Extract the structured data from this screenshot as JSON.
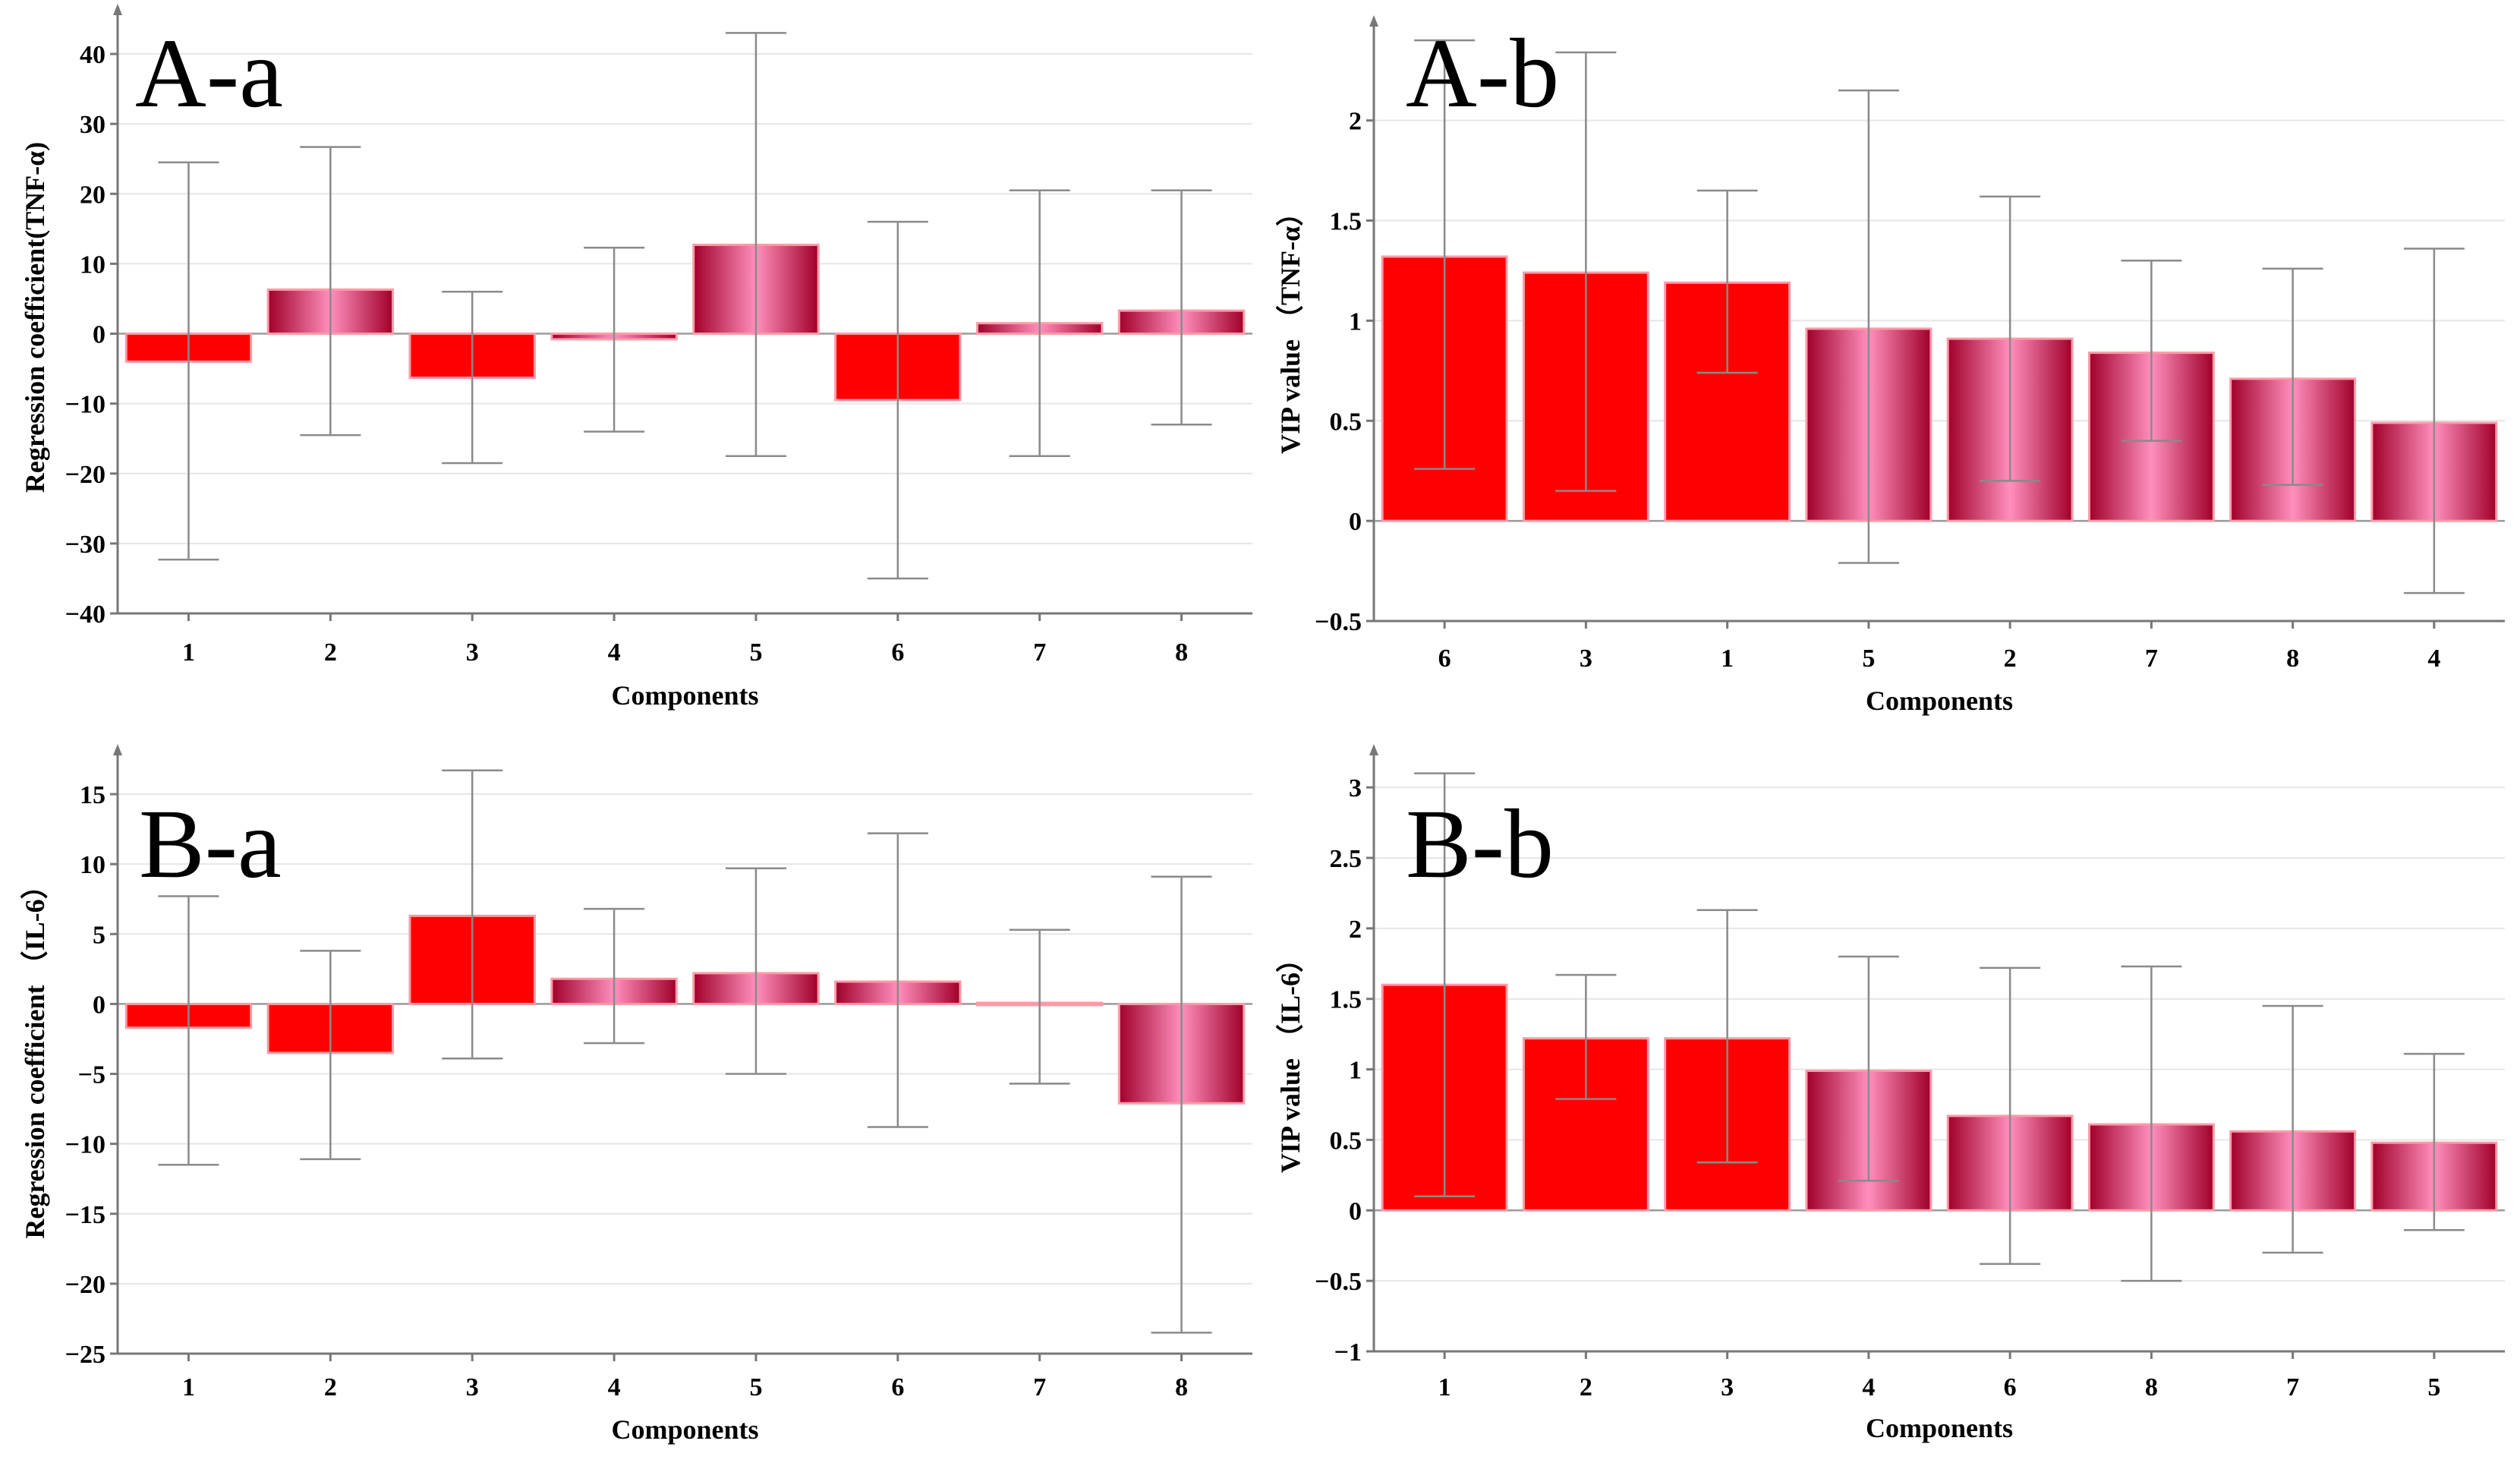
{
  "figure": {
    "colors": {
      "neg_or_top": "#ff0000",
      "gradient_dark": "#a0002a",
      "gradient_light": "#ff8fbd"
    }
  },
  "chart_data": [
    {
      "id": "A-a",
      "type": "bar",
      "title": "A-a",
      "xlabel": "Components",
      "ylabel": "Regression coefficient(TNF-α)",
      "categories": [
        "1",
        "2",
        "3",
        "4",
        "5",
        "6",
        "7",
        "8"
      ],
      "values": [
        -4,
        6.3,
        -6.3,
        -0.8,
        12.7,
        -9.5,
        1.5,
        3.3
      ],
      "err_low": [
        -32.3,
        -14.5,
        -18.5,
        -14,
        -17.5,
        -35,
        -17.5,
        -13
      ],
      "err_high": [
        24.5,
        26.7,
        6,
        12.3,
        43,
        16,
        20.5,
        20.5
      ],
      "fill": [
        "solid",
        "gradient",
        "solid",
        "gradient",
        "gradient",
        "solid",
        "gradient",
        "gradient"
      ],
      "ylim": [
        -40,
        45
      ],
      "yticks": [
        -40,
        -30,
        -20,
        -10,
        0,
        10,
        20,
        30,
        40
      ],
      "grid": true
    },
    {
      "id": "A-b",
      "type": "bar",
      "title": "A-b",
      "xlabel": "Components",
      "ylabel": "VIP value （TNF-α）",
      "categories": [
        "6",
        "3",
        "1",
        "5",
        "2",
        "7",
        "8",
        "4"
      ],
      "values": [
        1.32,
        1.24,
        1.19,
        0.96,
        0.91,
        0.84,
        0.71,
        0.49
      ],
      "err_low": [
        0.26,
        0.15,
        0.74,
        -0.21,
        0.2,
        0.4,
        0.18,
        -0.36
      ],
      "err_high": [
        2.4,
        2.34,
        1.65,
        2.15,
        1.62,
        1.3,
        1.26,
        1.36
      ],
      "fill": [
        "solid",
        "solid",
        "solid",
        "gradient",
        "gradient",
        "gradient",
        "gradient",
        "gradient"
      ],
      "ylim": [
        -0.5,
        2.45
      ],
      "yticks": [
        -0.5,
        0,
        0.5,
        1,
        1.5,
        2
      ],
      "grid": true
    },
    {
      "id": "B-a",
      "type": "bar",
      "title": "B-a",
      "xlabel": "Components",
      "ylabel": "Regression coefficient （IL-6）",
      "categories": [
        "1",
        "2",
        "3",
        "4",
        "5",
        "6",
        "7",
        "8"
      ],
      "values": [
        -1.7,
        -3.5,
        6.3,
        1.8,
        2.2,
        1.6,
        0,
        -7.1
      ],
      "err_low": [
        -11.5,
        -11.1,
        -3.9,
        -2.8,
        -5,
        -8.8,
        -5.7,
        -23.5
      ],
      "err_high": [
        7.7,
        3.8,
        16.7,
        6.8,
        9.7,
        12.2,
        5.3,
        9.1
      ],
      "fill": [
        "solid",
        "solid",
        "solid",
        "gradient",
        "gradient",
        "gradient",
        "gradient",
        "gradient"
      ],
      "ylim": [
        -25,
        17.5
      ],
      "yticks": [
        -25,
        -20,
        -15,
        -10,
        -5,
        0,
        5,
        10,
        15
      ],
      "grid": true
    },
    {
      "id": "B-b",
      "type": "bar",
      "title": "B-b",
      "xlabel": "Components",
      "ylabel": "VIP value （IL-6）",
      "categories": [
        "1",
        "2",
        "3",
        "4",
        "6",
        "8",
        "7",
        "5"
      ],
      "values": [
        1.6,
        1.22,
        1.22,
        0.99,
        0.67,
        0.61,
        0.56,
        0.48
      ],
      "err_low": [
        0.1,
        0.79,
        0.34,
        0.21,
        -0.38,
        -0.5,
        -0.3,
        -0.14
      ],
      "err_high": [
        3.1,
        1.67,
        2.13,
        1.8,
        1.72,
        1.73,
        1.45,
        1.11
      ],
      "fill": [
        "solid",
        "solid",
        "solid",
        "gradient",
        "gradient",
        "gradient",
        "gradient",
        "gradient"
      ],
      "ylim": [
        -1,
        3.2
      ],
      "yticks": [
        -1,
        -0.5,
        0,
        0.5,
        1,
        1.5,
        2,
        2.5,
        3
      ],
      "grid": true
    }
  ]
}
